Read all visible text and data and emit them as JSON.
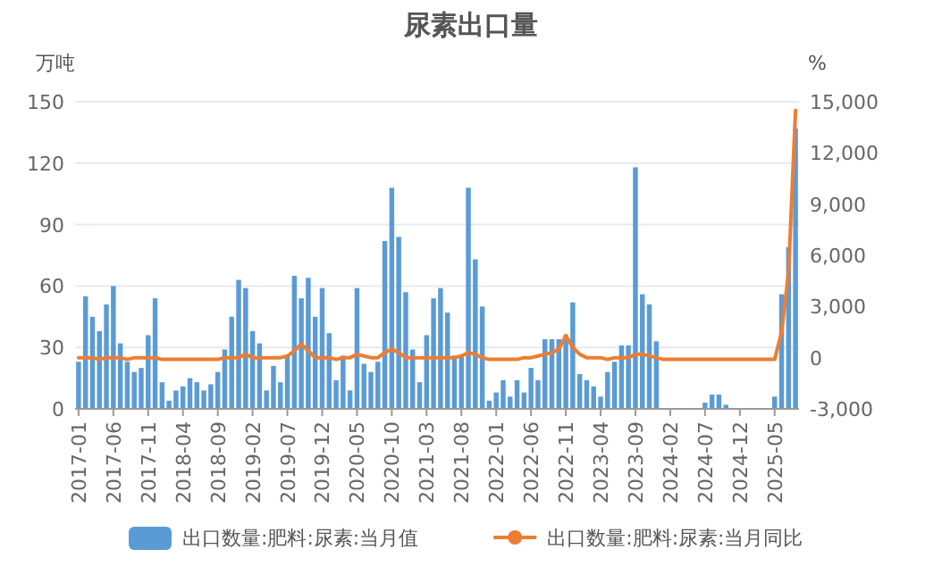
{
  "chart_data": {
    "type": "bar",
    "title": "尿素出口量",
    "ylabel": "万吨",
    "y2label": "%",
    "categories": [
      "2017-01",
      null,
      null,
      null,
      null,
      "2017-06",
      null,
      null,
      null,
      null,
      "2017-11",
      null,
      null,
      null,
      null,
      "2018-04",
      null,
      null,
      null,
      null,
      "2018-09",
      null,
      null,
      null,
      null,
      "2019-02",
      null,
      null,
      null,
      null,
      "2019-07",
      null,
      null,
      null,
      null,
      "2019-12",
      null,
      null,
      null,
      null,
      "2020-05",
      null,
      null,
      null,
      null,
      "2020-10",
      null,
      null,
      null,
      null,
      "2021-03",
      null,
      null,
      null,
      null,
      "2021-08",
      null,
      null,
      null,
      null,
      "2022-01",
      null,
      null,
      null,
      null,
      "2022-06",
      null,
      null,
      null,
      null,
      "2022-11",
      null,
      null,
      null,
      null,
      "2023-04",
      null,
      null,
      null,
      null,
      "2023-09",
      null,
      null,
      null,
      null,
      "2024-02",
      null,
      null,
      null,
      null,
      "2024-07",
      null,
      null,
      null,
      null,
      "2024-12",
      null,
      null,
      null,
      null,
      "2025-05",
      null,
      null,
      null
    ],
    "series": [
      {
        "name": "出口数量:肥料:尿素:当月值",
        "color": "#5b9bd5",
        "values": [
          23,
          55,
          45,
          38,
          51,
          60,
          32,
          23,
          18,
          20,
          36,
          54,
          13,
          4,
          9,
          11,
          15,
          13,
          9,
          12,
          18,
          29,
          45,
          63,
          59,
          38,
          32,
          9,
          21,
          13,
          26,
          65,
          54,
          64,
          45,
          59,
          37,
          14,
          26,
          9,
          59,
          22,
          18,
          23,
          82,
          108,
          84,
          57,
          29,
          13,
          36,
          54,
          59,
          47,
          26,
          26,
          108,
          73,
          50,
          4,
          8,
          14,
          6,
          14,
          8,
          20,
          14,
          34,
          34,
          34,
          36,
          52,
          17,
          14,
          11,
          6,
          18,
          23,
          31,
          31,
          118,
          56,
          51,
          33,
          0,
          0,
          0,
          0,
          0,
          0,
          3,
          7,
          7,
          2,
          0,
          0,
          0,
          0,
          0,
          0,
          6,
          56,
          79,
          137
        ]
      },
      {
        "name": "出口数量:肥料:尿素:当月同比",
        "type": "line",
        "axis": "y2",
        "color": "#ed7d31",
        "values": [
          0,
          0,
          0,
          -100,
          0,
          0,
          0,
          -100,
          0,
          0,
          0,
          0,
          -100,
          -100,
          -100,
          -100,
          -100,
          -100,
          -100,
          -100,
          -100,
          0,
          0,
          0,
          200,
          0,
          0,
          0,
          0,
          0,
          100,
          400,
          800,
          400,
          0,
          0,
          0,
          -100,
          0,
          0,
          200,
          100,
          0,
          0,
          300,
          500,
          300,
          0,
          0,
          0,
          0,
          0,
          0,
          0,
          0,
          100,
          300,
          200,
          0,
          -100,
          -100,
          -100,
          -100,
          -100,
          0,
          0,
          100,
          200,
          300,
          500,
          1300,
          600,
          200,
          0,
          0,
          0,
          -100,
          0,
          0,
          0,
          200,
          200,
          100,
          0,
          -100,
          -100,
          -100,
          -100,
          -100,
          -100,
          -100,
          -100,
          -100,
          -100,
          -100,
          -100,
          -100,
          -100,
          -100,
          -100,
          -100,
          1500,
          5000,
          14500
        ]
      }
    ],
    "ylim": [
      0,
      150
    ],
    "yticks": [
      0,
      30,
      60,
      90,
      120,
      150
    ],
    "y2lim": [
      -3000,
      15000
    ],
    "y2ticks": [
      {
        "value": -3000,
        "label": "-3,000"
      },
      0,
      {
        "value": 3000,
        "label": "3,000"
      },
      {
        "value": 6000,
        "label": "6,000"
      },
      {
        "value": 9000,
        "label": "9,000"
      },
      {
        "value": 12000,
        "label": "12,000"
      },
      {
        "value": 15000,
        "label": "15,000"
      }
    ],
    "grid": "y",
    "legend": "bottom"
  }
}
